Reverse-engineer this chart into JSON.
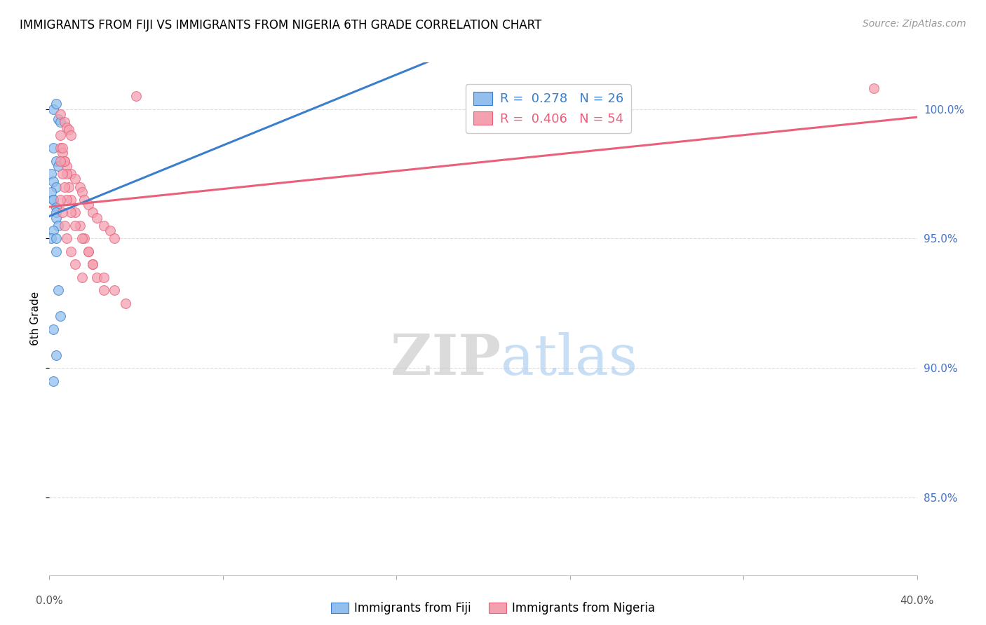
{
  "title": "IMMIGRANTS FROM FIJI VS IMMIGRANTS FROM NIGERIA 6TH GRADE CORRELATION CHART",
  "source": "Source: ZipAtlas.com",
  "ylabel": "6th Grade",
  "yticks": [
    85.0,
    90.0,
    95.0,
    100.0
  ],
  "ytick_labels": [
    "85.0%",
    "90.0%",
    "95.0%",
    "100.0%"
  ],
  "xlim": [
    0.0,
    0.4
  ],
  "ylim": [
    82.0,
    101.8
  ],
  "fiji_R": 0.278,
  "fiji_N": 26,
  "nigeria_R": 0.406,
  "nigeria_N": 54,
  "fiji_color": "#92BFED",
  "nigeria_color": "#F4A0B0",
  "fiji_line_color": "#3B7FCC",
  "nigeria_line_color": "#E8607A",
  "watermark_zip": "ZIP",
  "watermark_atlas": "atlas",
  "fiji_x": [
    0.002,
    0.003,
    0.004,
    0.005,
    0.002,
    0.003,
    0.004,
    0.001,
    0.002,
    0.003,
    0.001,
    0.002,
    0.002,
    0.003,
    0.003,
    0.003,
    0.004,
    0.002,
    0.001,
    0.003,
    0.003,
    0.004,
    0.005,
    0.002,
    0.003,
    0.002
  ],
  "fiji_y": [
    100.0,
    100.2,
    99.6,
    99.5,
    98.5,
    98.0,
    97.8,
    97.5,
    97.2,
    97.0,
    96.8,
    96.5,
    96.5,
    96.2,
    96.0,
    95.8,
    95.5,
    95.3,
    95.0,
    95.0,
    94.5,
    93.0,
    92.0,
    91.5,
    90.5,
    89.5
  ],
  "nigeria_x": [
    0.005,
    0.007,
    0.008,
    0.009,
    0.01,
    0.005,
    0.006,
    0.007,
    0.008,
    0.01,
    0.012,
    0.014,
    0.015,
    0.016,
    0.018,
    0.02,
    0.022,
    0.025,
    0.028,
    0.03,
    0.005,
    0.006,
    0.007,
    0.008,
    0.009,
    0.01,
    0.012,
    0.014,
    0.016,
    0.018,
    0.02,
    0.022,
    0.025,
    0.005,
    0.006,
    0.007,
    0.008,
    0.01,
    0.012,
    0.015,
    0.018,
    0.02,
    0.025,
    0.03,
    0.035,
    0.04,
    0.005,
    0.006,
    0.007,
    0.008,
    0.01,
    0.012,
    0.015,
    0.38
  ],
  "nigeria_y": [
    99.8,
    99.5,
    99.3,
    99.2,
    99.0,
    98.5,
    98.3,
    98.0,
    97.8,
    97.5,
    97.3,
    97.0,
    96.8,
    96.5,
    96.3,
    96.0,
    95.8,
    95.5,
    95.3,
    95.0,
    99.0,
    98.5,
    98.0,
    97.5,
    97.0,
    96.5,
    96.0,
    95.5,
    95.0,
    94.5,
    94.0,
    93.5,
    93.0,
    98.0,
    97.5,
    97.0,
    96.5,
    96.0,
    95.5,
    95.0,
    94.5,
    94.0,
    93.5,
    93.0,
    92.5,
    100.5,
    96.5,
    96.0,
    95.5,
    95.0,
    94.5,
    94.0,
    93.5,
    100.8
  ]
}
